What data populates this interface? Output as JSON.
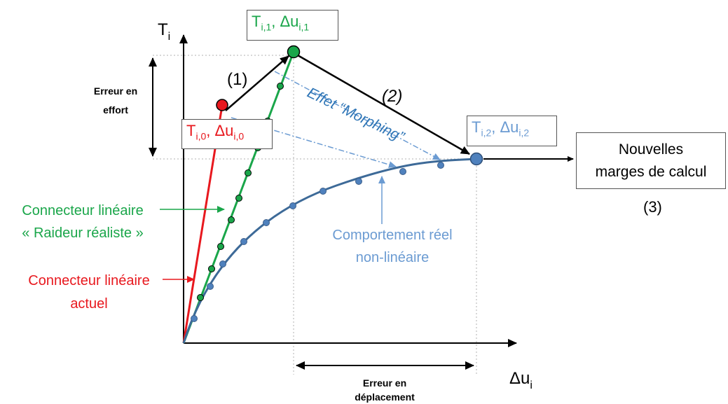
{
  "axes": {
    "y_base": "T",
    "y_sub": "i",
    "x_base": "Δu",
    "x_sub": "i"
  },
  "points": {
    "p0": {
      "t_sub": "i,0",
      "du_sub": "i,0"
    },
    "p1": {
      "t_sub": "i,1",
      "du_sub": "i,1"
    },
    "p2": {
      "t_sub": "i,2",
      "du_sub": "i,2"
    }
  },
  "steps": {
    "step1": "(1)",
    "step2": "(2)",
    "step3": "(3)"
  },
  "morphing": {
    "line": "Effet “Morphing”"
  },
  "error_force": {
    "line1": "Erreur en",
    "line2": "effort"
  },
  "error_disp": {
    "line1": "Erreur en",
    "line2": "déplacement"
  },
  "green_connector": {
    "line1": "Connecteur linéaire",
    "line2": "« Raideur réaliste »"
  },
  "red_connector": {
    "line1": "Connecteur linéaire",
    "line2": "actuel"
  },
  "real_behavior": {
    "line1": "Comportement réel",
    "line2": "non-linéaire"
  },
  "new_margins": {
    "line1": "Nouvelles",
    "line2": "marges de calcul"
  },
  "colors": {
    "red": "#e8181e",
    "green": "#1aa64a",
    "blue": "#4f81bd",
    "blue_dark": "#2e75b6",
    "curve": "#3d6a98",
    "black": "#000000"
  }
}
